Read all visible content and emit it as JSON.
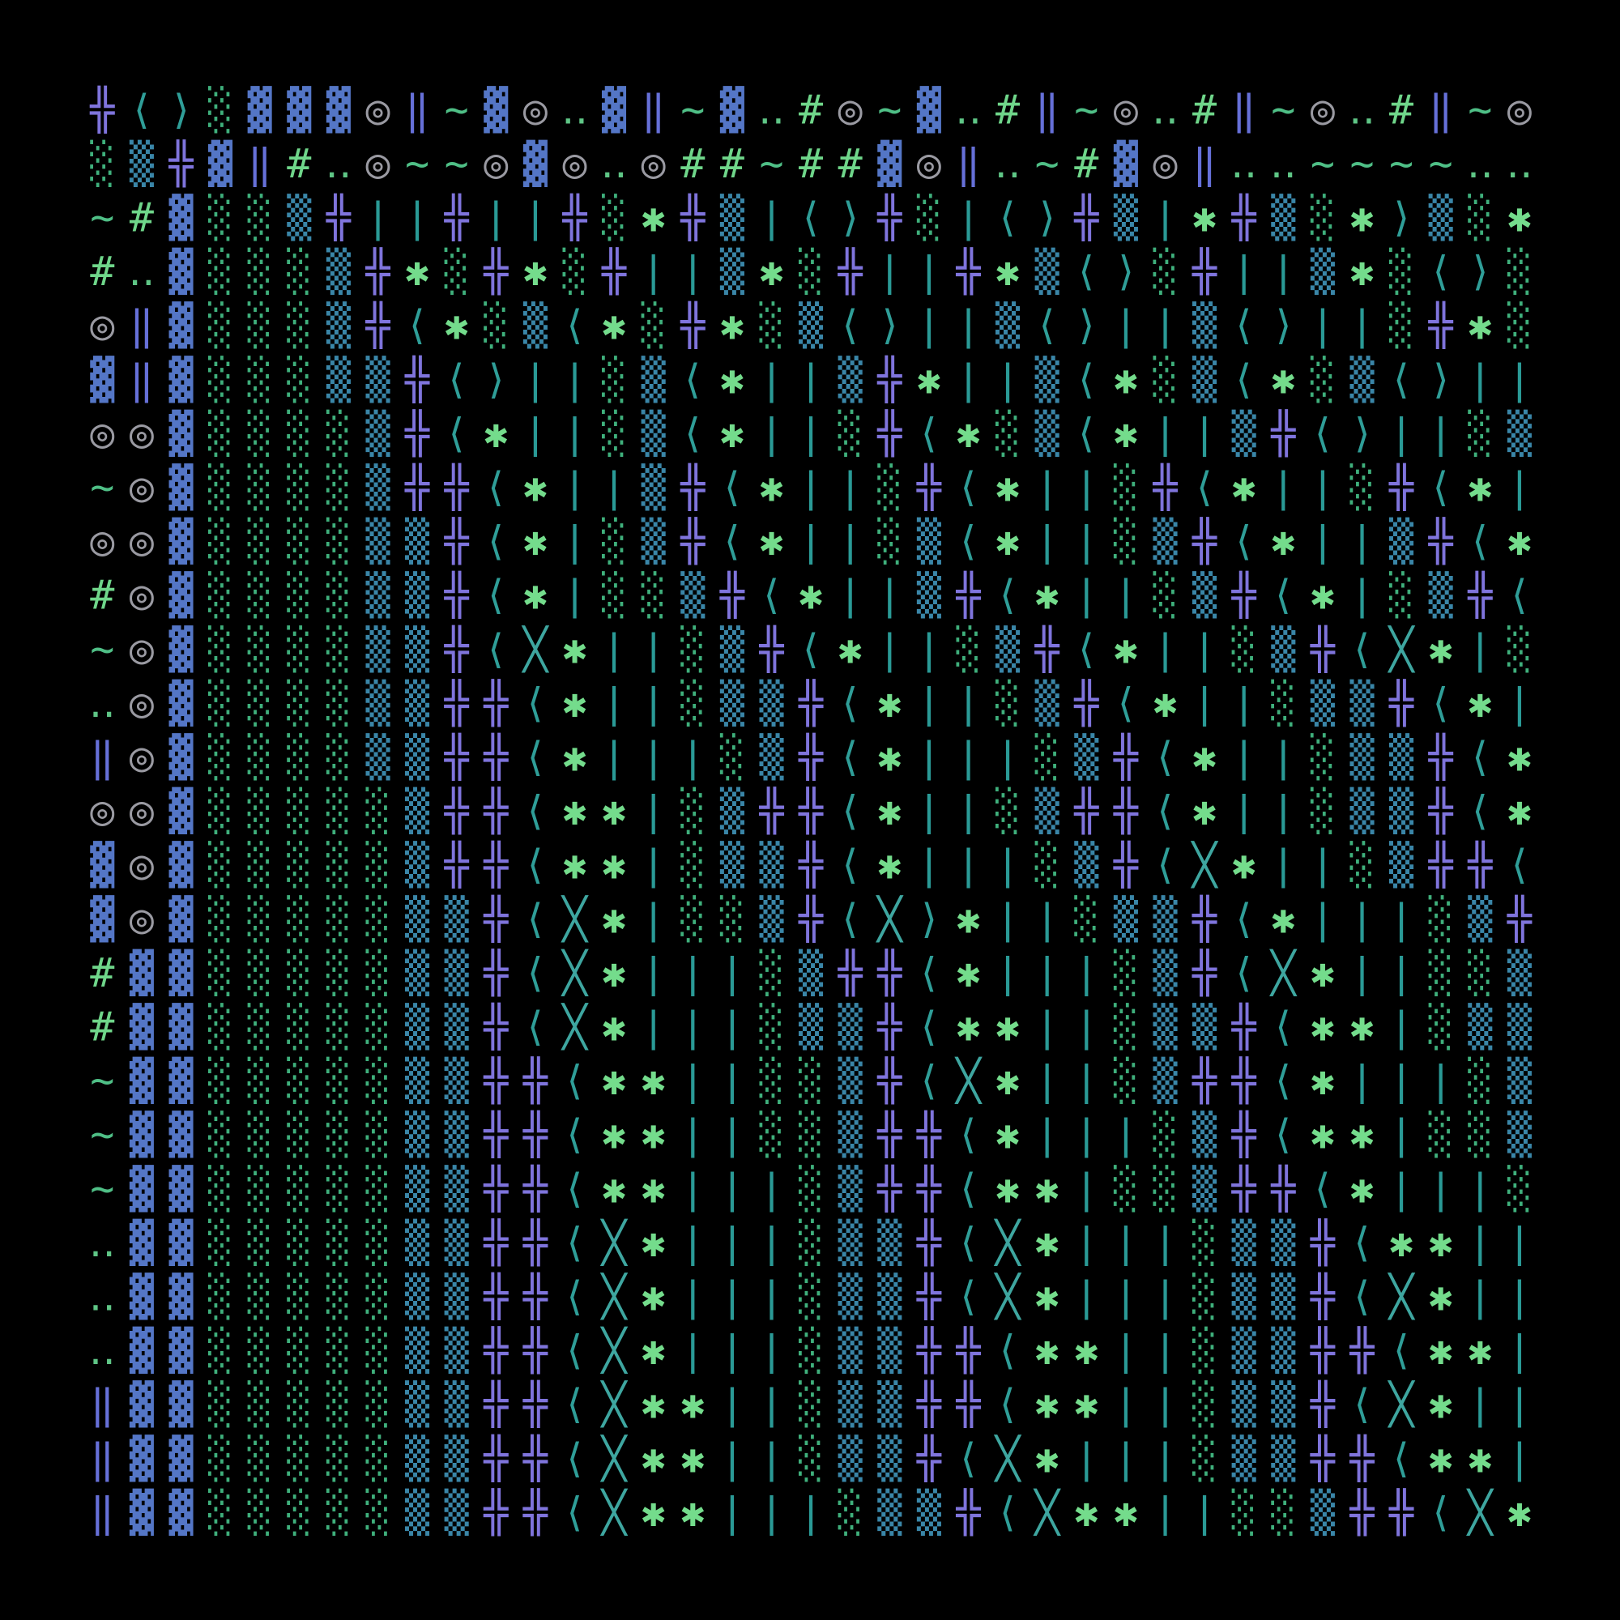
{
  "grid": {
    "rows": [
      "╬⟨⟩░▓▓▓◎‖~▓◎‥▓‖~▓‥#◎~▓‥#‖~◎‥#‖~◎‥#‖~◎",
      "░▒╬▓‖#‥◎~~◎▓◎‥◎##~##▓◎‖‥~#▓◎‖‥‥~~~~‥‥",
      "~#▓░░▒╬||╬||╬░✱╬▒|⟨⟩╬░|⟨⟩╬▒|✱╬▒░✱⟩▒░✱⟩",
      "#‥▓░░░▒╬✱░╬✱░╬||▒✱░╬||╬✱▒⟨⟩░╬||▒✱░⟨⟩░╬",
      "◎‖▓░░░▒╬⟨✱░▒⟨✱░╬✱░▒⟨⟩||▒⟨⟩||▒⟨⟩||░╬✱░╬",
      "▓‖▓░░░▒▒╬⟨⟩||░▒⟨✱||▒╬✱||▒⟨✱░▒⟨✱░▒⟨⟩||░╬",
      "◎◎▓░░░░▒╬⟨✱||░▒⟨✱||░╬⟨✱░▒⟨✱||▒╬⟨⟩||░▒⟨✱",
      "~◎▓░░░░▒╬╬⟨✱||▒╬⟨✱||░╬⟨✱||░╬⟨✱||░╬⟨✱||░",
      "◎◎▓░░░░▒▒╬⟨✱|░▒╬⟨✱||░▒⟨✱||░▒╬⟨✱||▒╬⟨✱||",
      "#◎▓░░░░▒▒╬⟨✱|░░▒╬⟨✱||▒╬⟨✱||░▒╬⟨✱|░▒╬⟨✱",
      "~◎▓░░░░▒▒╬⟨╳✱||░▒╬⟨✱||░▒╬⟨✱||░▒╬⟨╳✱|░▒╬",
      "‥◎▓░░░░▒▒╬╬⟨✱||░▒▒╬⟨✱||░▒╬⟨✱||░▒▒╬⟨✱||░",
      "‖◎▓░░░░▒▒╬╬⟨✱|||░▒╬⟨✱|||░▒╬⟨✱||░▒▒╬⟨✱||",
      "◎◎▓░░░░░▒╬╬⟨✱✱|░▒╬╬⟨✱||░▒╬╬⟨✱||░▒▒╬⟨✱||",
      "▓◎▓░░░░░▒╬╬⟨✱✱|░▒▒╬⟨✱|||░▒╬⟨╳✱||░▒╬╬⟨✱|",
      "▓◎▓░░░░░▒▒╬⟨╳✱|░░▒╬⟨╳⟩✱||░▒▒╬⟨✱|||░▒╬╬⟨✱",
      "#▓▓░░░░░▒▒╬⟨╳✱|||░▒╬╬⟨✱|||░▒╬⟨╳✱||░░▒╬⟨╳",
      "#▓▓░░░░░▒▒╬⟨╳✱|||░▒▒╬⟨✱✱||░▒▒╬⟨✱✱|░▒▒╬⟨",
      "~▓▓░░░░░▒▒╬╬⟨✱✱||░░▒╬⟨╳✱||░▒╬╬⟨✱|||░▒▒░",
      "~▓▓░░░░░▒▒╬╬⟨✱✱||░░▒╬╬⟨✱|||░▒╬⟨✱✱|░░▒▒░",
      "~▓▓░░░░░▒▒╬╬⟨✱✱|||░▒╬╬⟨✱✱|░░▒╬╬⟨✱|||░▒▒",
      "‥▓▓░░░░░▒▒╬╬⟨╳✱|||░▒▒╬⟨╳✱|||░▒▒╬⟨✱✱|||░▒",
      "‥▓▓░░░░░▒▒╬╬⟨╳✱|||░▒▒╬⟨╳✱|||░▒▒╬⟨╳✱|||░░",
      "‥▓▓░░░░░▒▒╬╬⟨╳✱|||░▒▒╬╬⟨✱✱||░▒▒╬╬⟨✱✱|||",
      "‖▓▓░░░░░▒▒╬╬⟨╳✱✱||░▒▒╬╬⟨✱✱||░▒▒╬⟨╳✱|||░",
      "‖▓▓░░░░░▒▒╬╬⟨╳✱✱||░▒▒╬⟨╳✱|||░▒▒╬╬⟨✱✱||",
      "‖▓▓░░░░░▒▒╬╬⟨╳✱✱|||░▒▒╬⟨╳✱✱||░░▒╬╬⟨╳✱||"
    ],
    "colors": {
      "╬": "#7f74dc",
      "⟨": "#2f9e98",
      "⟩": "#2f9e98",
      "░": "#3fb07c",
      "▒": "#3a86a8",
      "▓": "#5476c6",
      "◎": "#9a9aa2",
      "‖": "#6670d8",
      "~": "#4fbf86",
      "#": "#6fd68a",
      "‥": "#5fc686",
      "✱": "#74dc8c",
      "╳": "#3ea6a0",
      "|": "#2a9a96"
    }
  }
}
